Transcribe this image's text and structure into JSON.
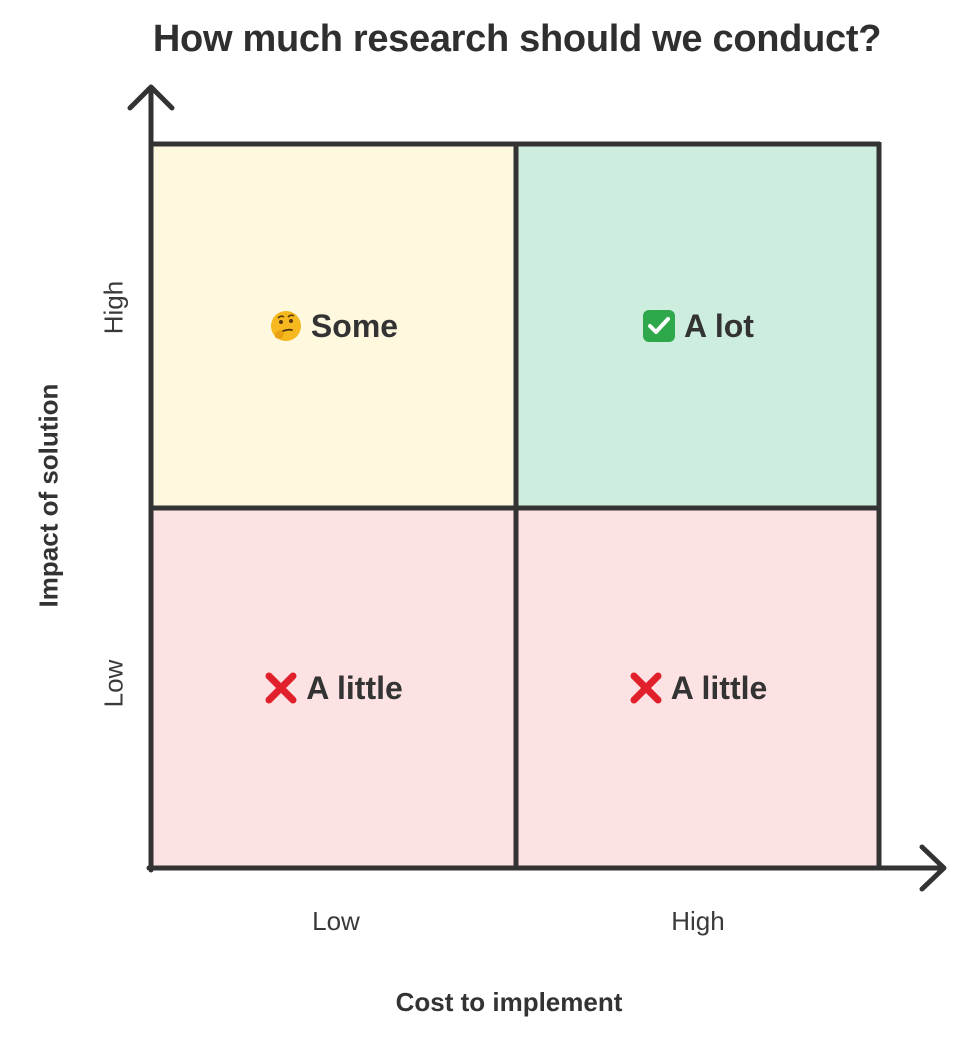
{
  "title": "How much research should we conduct?",
  "x_axis": {
    "title": "Cost to implement",
    "ticks": [
      "Low",
      "High"
    ]
  },
  "y_axis": {
    "title": "Impact of solution",
    "ticks": [
      "High",
      "Low"
    ]
  },
  "quadrants": [
    {
      "position": "top-left",
      "icon": "thinking-face-icon",
      "label": "Some",
      "color": "#fdf8de"
    },
    {
      "position": "top-right",
      "icon": "check-mark-button-icon",
      "label": "A lot",
      "color": "#cdeedf"
    },
    {
      "position": "bottom-left",
      "icon": "cross-mark-icon",
      "label": "A little",
      "color": "#fde2e3"
    },
    {
      "position": "bottom-right",
      "icon": "cross-mark-icon",
      "label": "A little",
      "color": "#fde2e3"
    }
  ],
  "colors": {
    "lines": "#333333",
    "cross": "#e0202a",
    "check": "#2ea84a",
    "thinking": "#f6b81f"
  }
}
